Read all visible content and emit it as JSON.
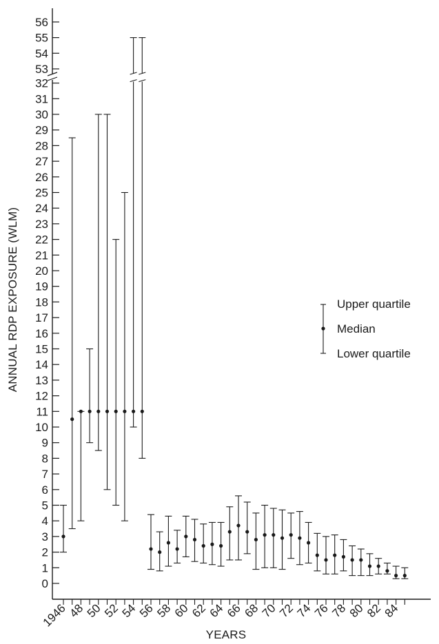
{
  "chart_data": {
    "type": "error-bar",
    "ylabel": "ANNUAL RDP EXPOSURE (WLM)",
    "xlabel": "YEARS",
    "y_ticks": [
      0,
      1,
      2,
      3,
      4,
      5,
      6,
      7,
      8,
      9,
      10,
      11,
      12,
      13,
      14,
      15,
      16,
      17,
      18,
      19,
      20,
      21,
      22,
      23,
      24,
      25,
      26,
      27,
      28,
      29,
      30,
      31,
      32,
      53,
      54,
      55,
      56
    ],
    "y_axis_break": [
      32,
      53
    ],
    "x_tick_labels": [
      {
        "year": 1946,
        "label": "1946"
      },
      {
        "year": 1948,
        "label": "48"
      },
      {
        "year": 1950,
        "label": "50"
      },
      {
        "year": 1952,
        "label": "52"
      },
      {
        "year": 1954,
        "label": "54"
      },
      {
        "year": 1956,
        "label": "56"
      },
      {
        "year": 1958,
        "label": "58"
      },
      {
        "year": 1960,
        "label": "60"
      },
      {
        "year": 1962,
        "label": "62"
      },
      {
        "year": 1964,
        "label": "64"
      },
      {
        "year": 1966,
        "label": "66"
      },
      {
        "year": 1968,
        "label": "68"
      },
      {
        "year": 1970,
        "label": "70"
      },
      {
        "year": 1972,
        "label": "72"
      },
      {
        "year": 1974,
        "label": "74"
      },
      {
        "year": 1976,
        "label": "76"
      },
      {
        "year": 1978,
        "label": "78"
      },
      {
        "year": 1980,
        "label": "80"
      },
      {
        "year": 1982,
        "label": "82"
      },
      {
        "year": 1984,
        "label": "84"
      }
    ],
    "legend": {
      "upper": "Upper quartile",
      "median": "Median",
      "lower": "Lower quartile",
      "placement": "right"
    },
    "points": [
      {
        "year": 1946,
        "lower": 2.0,
        "median": 3.0,
        "upper": 5.0
      },
      {
        "year": 1947,
        "lower": 3.5,
        "median": 10.5,
        "upper": 28.5
      },
      {
        "year": 1948,
        "lower": 4.0,
        "median": 11.0,
        "upper": 11.0
      },
      {
        "year": 1949,
        "lower": 9.0,
        "median": 11.0,
        "upper": 15.0
      },
      {
        "year": 1950,
        "lower": 8.5,
        "median": 11.0,
        "upper": 30.0
      },
      {
        "year": 1951,
        "lower": 6.0,
        "median": 11.0,
        "upper": 30.0
      },
      {
        "year": 1952,
        "lower": 5.0,
        "median": 11.0,
        "upper": 22.0
      },
      {
        "year": 1953,
        "lower": 4.0,
        "median": 11.0,
        "upper": 25.0
      },
      {
        "year": 1954,
        "lower": 10.0,
        "median": 11.0,
        "upper": 55.0
      },
      {
        "year": 1955,
        "lower": 8.0,
        "median": 11.0,
        "upper": 55.0
      },
      {
        "year": 1956,
        "lower": 0.9,
        "median": 2.2,
        "upper": 4.4
      },
      {
        "year": 1957,
        "lower": 0.8,
        "median": 2.0,
        "upper": 3.3
      },
      {
        "year": 1958,
        "lower": 1.1,
        "median": 2.6,
        "upper": 4.3
      },
      {
        "year": 1959,
        "lower": 1.3,
        "median": 2.2,
        "upper": 3.4
      },
      {
        "year": 1960,
        "lower": 1.7,
        "median": 3.0,
        "upper": 4.3
      },
      {
        "year": 1961,
        "lower": 1.4,
        "median": 2.8,
        "upper": 4.1
      },
      {
        "year": 1962,
        "lower": 1.3,
        "median": 2.4,
        "upper": 3.8
      },
      {
        "year": 1963,
        "lower": 1.2,
        "median": 2.5,
        "upper": 3.9
      },
      {
        "year": 1964,
        "lower": 1.1,
        "median": 2.4,
        "upper": 3.9
      },
      {
        "year": 1965,
        "lower": 1.5,
        "median": 3.3,
        "upper": 4.9
      },
      {
        "year": 1966,
        "lower": 1.5,
        "median": 3.7,
        "upper": 5.6
      },
      {
        "year": 1967,
        "lower": 1.9,
        "median": 3.3,
        "upper": 5.2
      },
      {
        "year": 1968,
        "lower": 0.9,
        "median": 2.8,
        "upper": 4.5
      },
      {
        "year": 1969,
        "lower": 1.0,
        "median": 3.1,
        "upper": 5.0
      },
      {
        "year": 1970,
        "lower": 1.0,
        "median": 3.1,
        "upper": 4.8
      },
      {
        "year": 1971,
        "lower": 0.9,
        "median": 2.9,
        "upper": 4.7
      },
      {
        "year": 1972,
        "lower": 1.6,
        "median": 3.1,
        "upper": 4.5
      },
      {
        "year": 1973,
        "lower": 1.2,
        "median": 2.9,
        "upper": 4.6
      },
      {
        "year": 1974,
        "lower": 1.3,
        "median": 2.6,
        "upper": 3.9
      },
      {
        "year": 1975,
        "lower": 0.8,
        "median": 1.8,
        "upper": 3.2
      },
      {
        "year": 1976,
        "lower": 0.6,
        "median": 1.5,
        "upper": 3.0
      },
      {
        "year": 1977,
        "lower": 0.6,
        "median": 1.8,
        "upper": 3.1
      },
      {
        "year": 1978,
        "lower": 0.8,
        "median": 1.7,
        "upper": 2.8
      },
      {
        "year": 1979,
        "lower": 0.5,
        "median": 1.5,
        "upper": 2.4
      },
      {
        "year": 1980,
        "lower": 0.5,
        "median": 1.5,
        "upper": 2.2
      },
      {
        "year": 1981,
        "lower": 0.5,
        "median": 1.1,
        "upper": 1.9
      },
      {
        "year": 1982,
        "lower": 0.6,
        "median": 1.1,
        "upper": 1.6
      },
      {
        "year": 1983,
        "lower": 0.6,
        "median": 0.8,
        "upper": 1.3
      },
      {
        "year": 1984,
        "lower": 0.3,
        "median": 0.5,
        "upper": 1.1
      },
      {
        "year": 1985,
        "lower": 0.3,
        "median": 0.5,
        "upper": 1.0
      }
    ]
  }
}
